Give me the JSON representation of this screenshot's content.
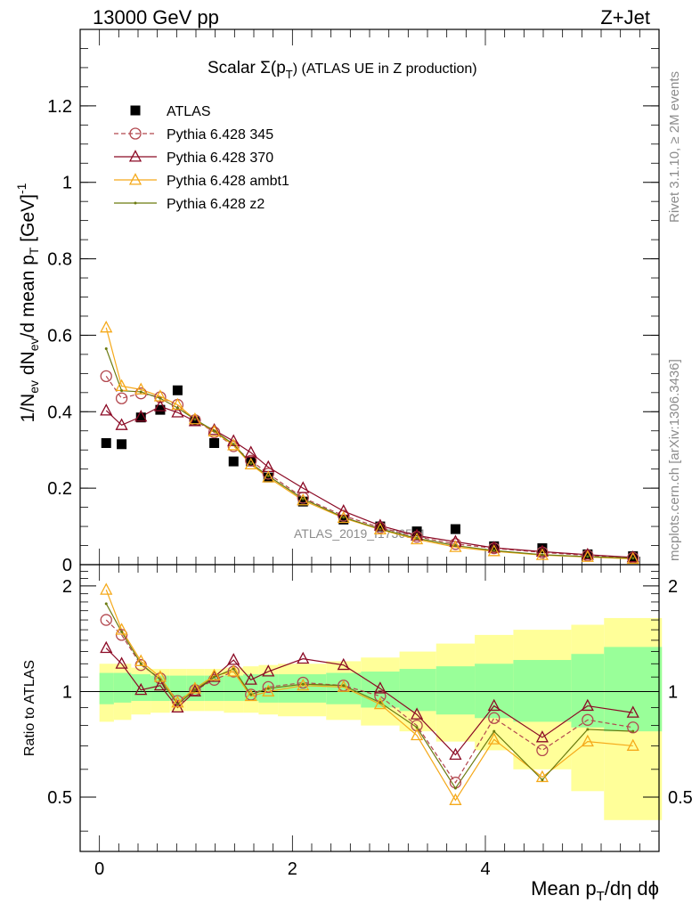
{
  "header": {
    "left": "13000 GeV pp",
    "right": "Z+Jet"
  },
  "plot_title_main": "Scalar Σ(p",
  "plot_title_sub": "T",
  "plot_title_tail": ") (ATLAS UE in Z production)",
  "side_label_top": "Rivet 3.1.10, ≥ 2M events",
  "side_label_bottom": "mcplots.cern.ch [arXiv:1306.3436]",
  "watermark": "ATLAS_2019_I1736531",
  "xlabel_main": "Mean p",
  "xlabel_sub": "T",
  "xlabel_tail": "/dη dϕ",
  "ylabel_ratio": "Ratio to ATLAS",
  "colors": {
    "atlas": "#000000",
    "p345": "#b2474e",
    "p370": "#8b0a25",
    "ambt1": "#f5a91a",
    "z2": "#6b7a0f",
    "band_inner": "#99ff99",
    "band_outer": "#ffff99"
  },
  "chart_data": [
    {
      "type": "scatter",
      "panel": "main",
      "ylim": [
        0,
        1.4
      ],
      "xlim": [
        -0.2,
        5.8
      ],
      "yticks": [
        0,
        0.2,
        0.4,
        0.6,
        0.8,
        1,
        1.2
      ],
      "ytick_labels": [
        "0",
        "0.2",
        "0.4",
        "0.6",
        "0.8",
        "1",
        "1.2"
      ],
      "x": [
        0.07,
        0.23,
        0.43,
        0.63,
        0.81,
        0.99,
        1.19,
        1.39,
        1.57,
        1.75,
        2.11,
        2.53,
        2.91,
        3.29,
        3.69,
        4.09,
        4.59,
        5.06,
        5.53
      ],
      "series": [
        {
          "name": "ATLAS",
          "key": "atlas",
          "values": [
            0.318,
            0.315,
            0.385,
            0.405,
            0.456,
            0.375,
            0.318,
            0.27,
            0.27,
            0.228,
            0.165,
            0.118,
            0.1,
            0.087,
            0.093,
            0.048,
            0.043,
            0.027,
            0.022
          ]
        },
        {
          "name": "Pythia 6.428 345",
          "key": "p345",
          "values": [
            0.493,
            0.435,
            0.448,
            0.438,
            0.418,
            0.378,
            0.346,
            0.31,
            0.272,
            0.238,
            0.175,
            0.128,
            0.097,
            0.073,
            0.054,
            0.043,
            0.032,
            0.024,
            0.018
          ]
        },
        {
          "name": "Pythia 6.428 370",
          "key": "p370",
          "values": [
            0.403,
            0.365,
            0.387,
            0.414,
            0.398,
            0.375,
            0.352,
            0.323,
            0.293,
            0.255,
            0.2,
            0.14,
            0.102,
            0.076,
            0.06,
            0.044,
            0.034,
            0.026,
            0.019
          ]
        },
        {
          "name": "Pythia 6.428 ambt1",
          "key": "ambt1",
          "values": [
            0.62,
            0.467,
            0.458,
            0.44,
            0.418,
            0.38,
            0.348,
            0.312,
            0.262,
            0.228,
            0.168,
            0.122,
            0.092,
            0.066,
            0.046,
            0.035,
            0.025,
            0.02,
            0.015
          ]
        },
        {
          "name": "Pythia 6.428 z2",
          "key": "z2",
          "values": [
            0.565,
            0.455,
            0.452,
            0.435,
            0.41,
            0.38,
            0.35,
            0.315,
            0.265,
            0.232,
            0.172,
            0.124,
            0.093,
            0.069,
            0.05,
            0.037,
            0.026,
            0.021,
            0.017
          ]
        }
      ]
    },
    {
      "type": "scatter",
      "panel": "ratio",
      "ylim": [
        0.35,
        2.3
      ],
      "yscale": "log",
      "xlim": [
        -0.2,
        5.8
      ],
      "yticks": [
        0.5,
        1,
        2
      ],
      "ytick_labels": [
        "0.5",
        "1",
        "2"
      ],
      "xticks": [
        0,
        2,
        4
      ],
      "xtick_labels": [
        "0",
        "2",
        "4"
      ],
      "bin_edges": [
        0,
        0.15,
        0.33,
        0.53,
        0.73,
        0.9,
        1.09,
        1.29,
        1.49,
        1.65,
        1.85,
        2.35,
        2.71,
        3.11,
        3.49,
        3.89,
        4.29,
        4.89,
        5.23,
        5.83
      ],
      "band_inner_lo": [
        0.92,
        0.93,
        0.94,
        0.94,
        0.94,
        0.94,
        0.94,
        0.94,
        0.94,
        0.93,
        0.93,
        0.92,
        0.9,
        0.88,
        0.86,
        0.84,
        0.82,
        0.79,
        0.77
      ],
      "band_inner_hi": [
        1.13,
        1.13,
        1.12,
        1.11,
        1.11,
        1.11,
        1.11,
        1.11,
        1.12,
        1.12,
        1.12,
        1.13,
        1.14,
        1.16,
        1.18,
        1.2,
        1.23,
        1.28,
        1.34
      ],
      "band_outer_lo": [
        0.82,
        0.83,
        0.86,
        0.87,
        0.88,
        0.88,
        0.88,
        0.87,
        0.87,
        0.86,
        0.85,
        0.83,
        0.8,
        0.77,
        0.72,
        0.68,
        0.6,
        0.52,
        0.43
      ],
      "band_outer_hi": [
        1.2,
        1.2,
        1.17,
        1.16,
        1.16,
        1.16,
        1.16,
        1.17,
        1.18,
        1.19,
        1.2,
        1.22,
        1.25,
        1.3,
        1.37,
        1.45,
        1.5,
        1.55,
        1.62
      ],
      "x": [
        0.07,
        0.23,
        0.43,
        0.63,
        0.81,
        0.99,
        1.19,
        1.39,
        1.57,
        1.75,
        2.11,
        2.53,
        2.91,
        3.29,
        3.69,
        4.09,
        4.59,
        5.06,
        5.53
      ],
      "series": [
        {
          "name": "Pythia 6.428 345",
          "key": "p345",
          "values": [
            1.6,
            1.45,
            1.19,
            1.09,
            0.94,
            1.01,
            1.08,
            1.14,
            0.98,
            1.03,
            1.06,
            1.04,
            0.97,
            0.8,
            0.55,
            0.84,
            0.68,
            0.83,
            0.79
          ]
        },
        {
          "name": "Pythia 6.428 370",
          "key": "p370",
          "values": [
            1.33,
            1.2,
            1.01,
            1.04,
            0.9,
            1.0,
            1.1,
            1.23,
            1.08,
            1.14,
            1.24,
            1.19,
            1.02,
            0.86,
            0.66,
            0.91,
            0.74,
            0.91,
            0.87
          ]
        },
        {
          "name": "Pythia 6.428 ambt1",
          "key": "ambt1",
          "values": [
            1.95,
            1.5,
            1.22,
            1.1,
            0.93,
            1.02,
            1.11,
            1.14,
            0.97,
            1.0,
            1.04,
            1.03,
            0.92,
            0.75,
            0.49,
            0.73,
            0.57,
            0.72,
            0.7
          ]
        },
        {
          "name": "Pythia 6.428 z2",
          "key": "z2",
          "values": [
            1.78,
            1.48,
            1.2,
            1.08,
            0.92,
            1.01,
            1.1,
            1.16,
            0.98,
            1.02,
            1.05,
            1.04,
            0.93,
            0.79,
            0.53,
            0.77,
            0.56,
            0.78,
            0.77
          ]
        }
      ]
    }
  ]
}
